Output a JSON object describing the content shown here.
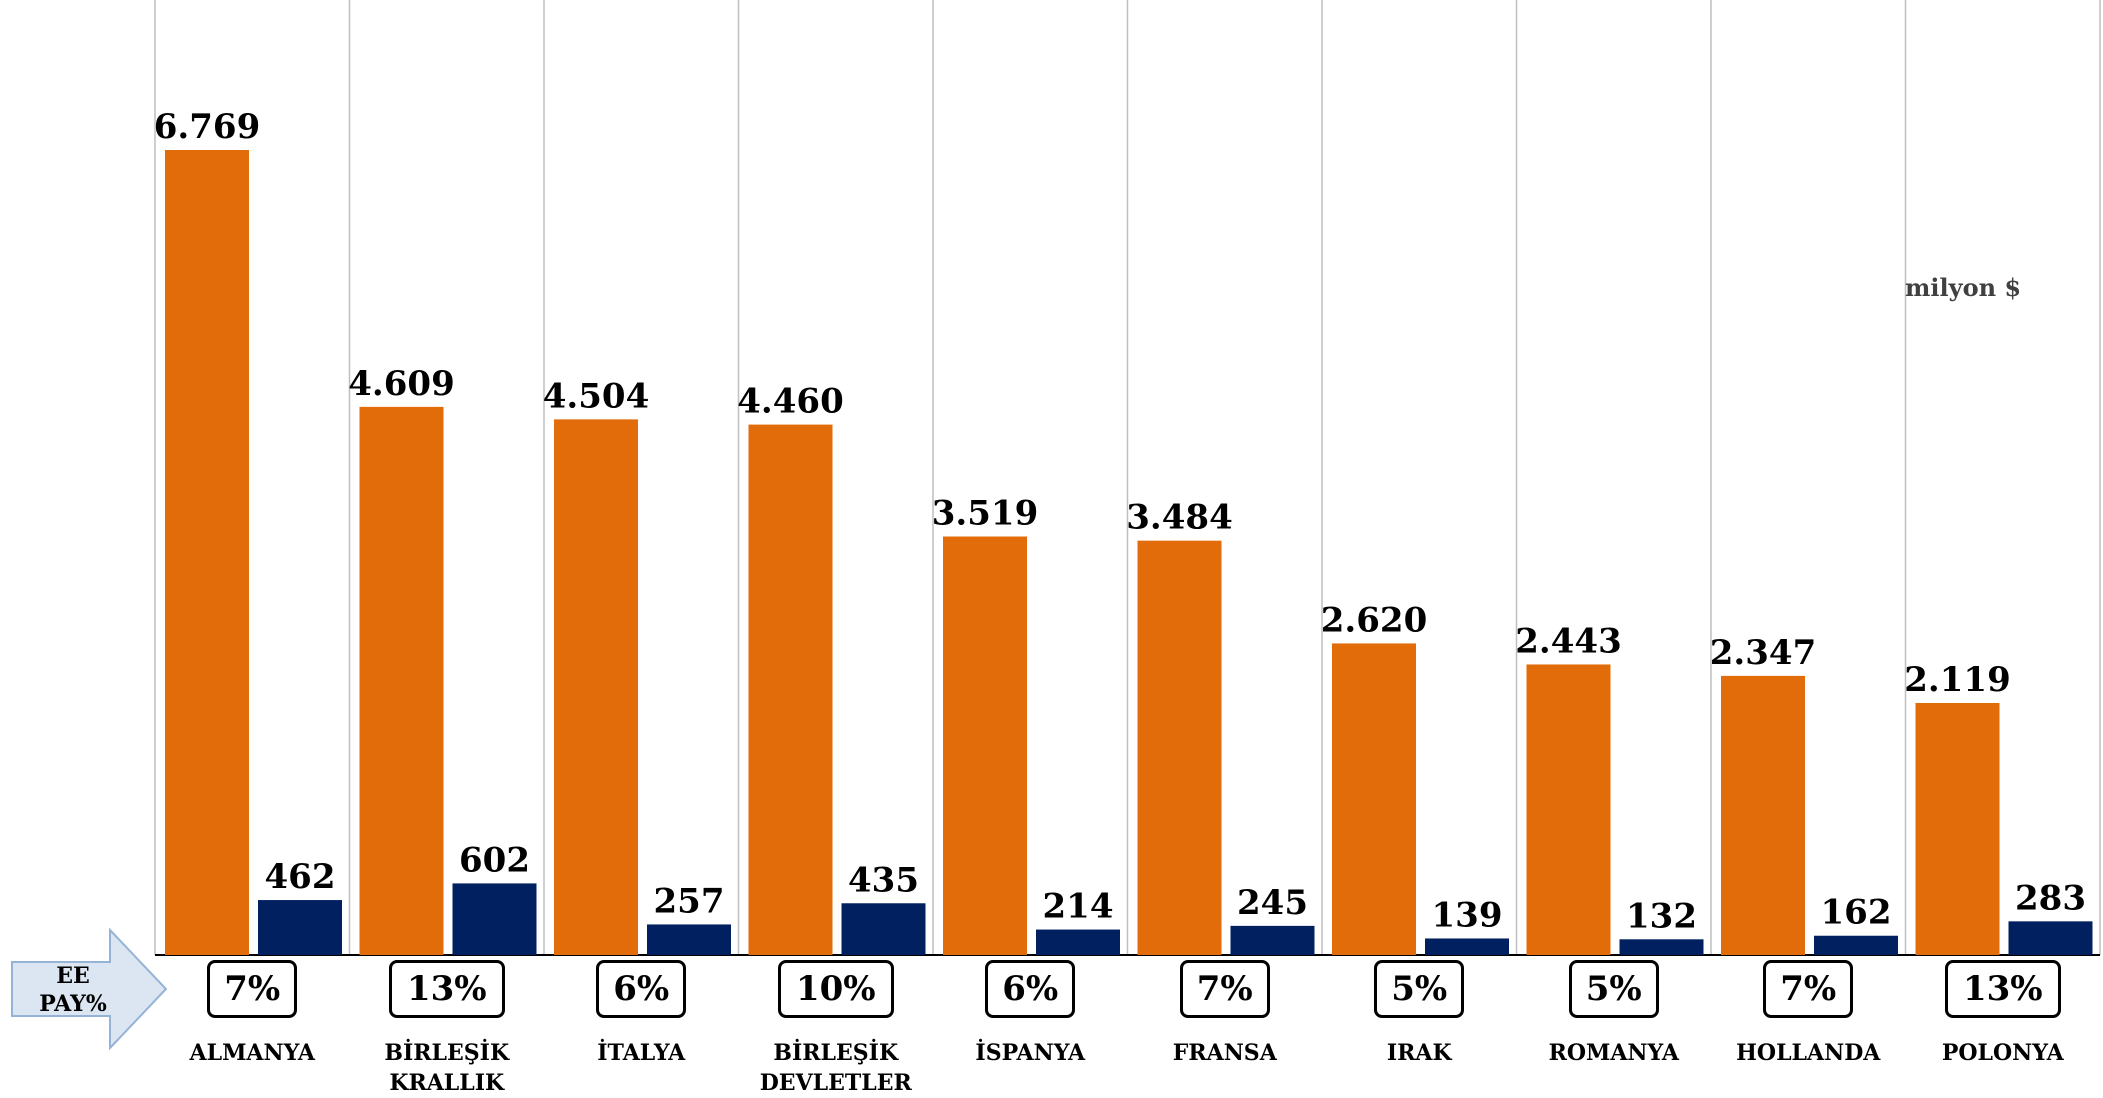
{
  "unit_label": "milyon $",
  "ee_label_line1": "EE",
  "ee_label_line2": "PAY%",
  "colors": {
    "total": "#E36C0A",
    "ee": "#002060",
    "gridline": "#BFBFBF",
    "axis": "#000000",
    "arrow_fill": "#DCE6F2",
    "arrow_stroke": "#95B3D7"
  },
  "chart_data": {
    "type": "bar",
    "categories": [
      "ALMANYA",
      "BİRLEŞİK\nKRALLIK",
      "İTALYA",
      "BİRLEŞİK\nDEVLETLER",
      "İSPANYA",
      "FRANSA",
      "IRAK",
      "ROMANYA",
      "HOLLANDA",
      "POLONYA"
    ],
    "series": [
      {
        "values": [
          6769,
          4609,
          4504,
          4460,
          3519,
          3484,
          2620,
          2443,
          2347,
          2119
        ],
        "labels": [
          "6.769",
          "4.609",
          "4.504",
          "4.460",
          "3.519",
          "3.484",
          "2.620",
          "2.443",
          "2.347",
          "2.119"
        ]
      },
      {
        "values": [
          462,
          602,
          257,
          435,
          214,
          245,
          139,
          132,
          162,
          283
        ],
        "labels": [
          "462",
          "602",
          "257",
          "435",
          "214",
          "245",
          "139",
          "132",
          "162",
          "283"
        ]
      }
    ],
    "ee_share": [
      "7%",
      "13%",
      "6%",
      "10%",
      "6%",
      "7%",
      "5%",
      "5%",
      "7%",
      "13%"
    ],
    "unit": "milyon $",
    "ylim": [
      0,
      6769
    ],
    "grid": "vertical separators",
    "legend": "none"
  }
}
